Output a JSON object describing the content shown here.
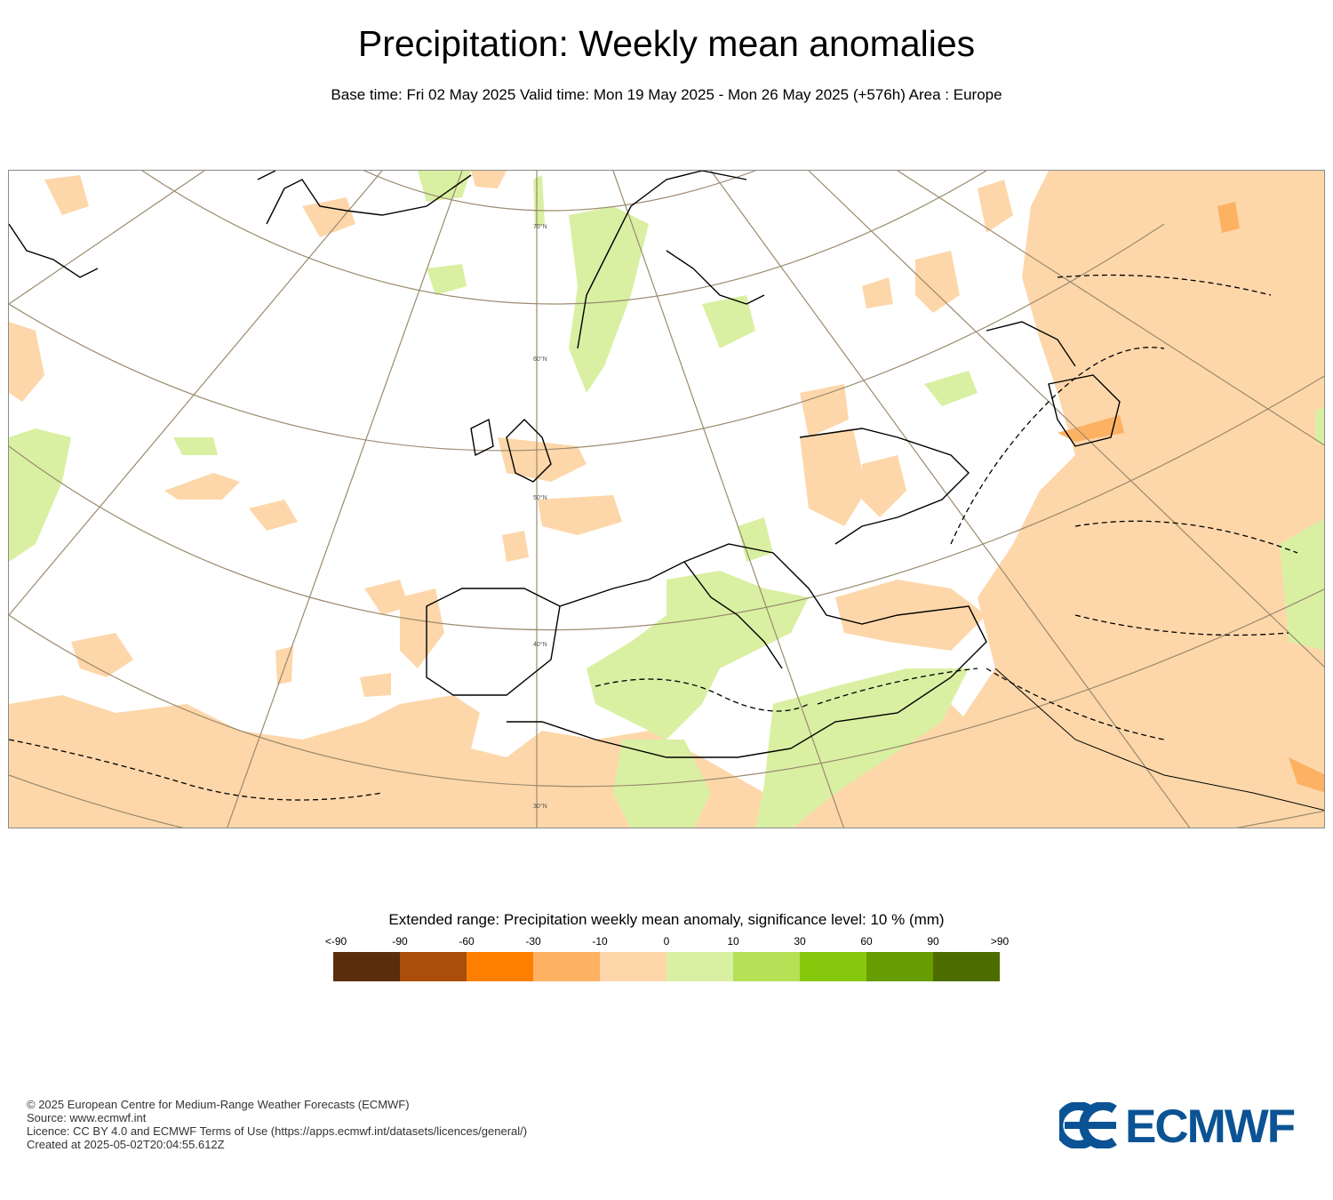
{
  "header": {
    "title": "Precipitation: Weekly mean anomalies",
    "subtitle": "Base time: Fri 02 May 2025 Valid time: Mon 19 May 2025 - Mon 26 May 2025 (+576h) Area : Europe"
  },
  "map": {
    "lat_labels": [
      "70°N",
      "60°N",
      "50°N",
      "40°N",
      "30°N"
    ],
    "colors": {
      "land_outline": "#000000",
      "graticule": "#9b8a6e",
      "dry_light": "#fdd7aa",
      "dry_medium": "#fdb163",
      "wet_light": "#d9f0a3"
    }
  },
  "legend": {
    "title": "Extended range: Precipitation weekly mean anomaly, significance level: 10 % (mm)",
    "labels": [
      "<-90",
      "-90",
      "-60",
      "-30",
      "-10",
      "0",
      "10",
      "30",
      "60",
      "90",
      ">90"
    ],
    "colors": [
      "#5a2d0c",
      "#a94f0b",
      "#fe7f00",
      "#fdb163",
      "#fdd7aa",
      "#d9f0a3",
      "#b4e155",
      "#86c80c",
      "#679d00",
      "#4c6c00"
    ]
  },
  "footer": {
    "line1": "© 2025 European Centre for Medium-Range Weather Forecasts (ECMWF)",
    "line2": "Source: www.ecmwf.int",
    "line3": "Licence: CC BY 4.0 and ECMWF Terms of Use (https://apps.ecmwf.int/datasets/licences/general/)",
    "line4": "Created at 2025-05-02T20:04:55.612Z"
  },
  "logo": {
    "text": "ECMWF",
    "color": "#0b5394"
  }
}
